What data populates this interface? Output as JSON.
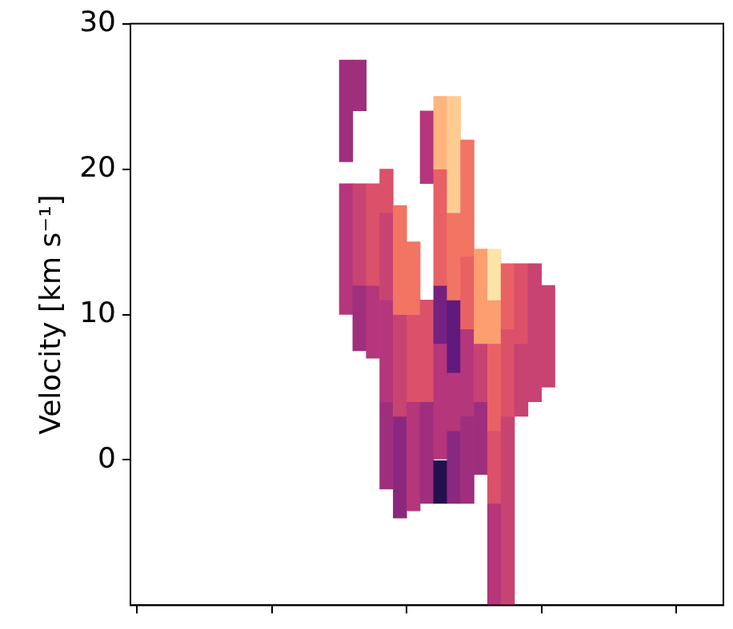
{
  "chart_data": {
    "type": "heatmap_spans",
    "y_label": "Velocity [km s⁻¹]",
    "xlim": [
      0,
      3.3
    ],
    "xticks": [
      0,
      1,
      2,
      3
    ],
    "ylim": [
      -10,
      30
    ],
    "yticks": [
      0,
      10,
      20,
      30
    ],
    "tick_labels": "y",
    "grid": false,
    "spans": [
      {
        "x": 1.05,
        "v": [
          20.5,
          27.5
        ],
        "intensity": 0.45
      },
      {
        "x": 1.05,
        "v": [
          10,
          19
        ],
        "intensity": 0.5
      },
      {
        "x": 1.15,
        "v": [
          24,
          27.5
        ],
        "intensity": 0.45
      },
      {
        "x": 1.15,
        "v": [
          7.5,
          12
        ],
        "intensity": 0.45
      },
      {
        "x": 1.15,
        "v": [
          12,
          19
        ],
        "intensity": 0.55
      },
      {
        "x": 1.25,
        "v": [
          7,
          12
        ],
        "intensity": 0.5
      },
      {
        "x": 1.25,
        "v": [
          12,
          19
        ],
        "intensity": 0.6
      },
      {
        "x": 1.35,
        "v": [
          -2,
          4
        ],
        "intensity": 0.45
      },
      {
        "x": 1.35,
        "v": [
          4,
          11
        ],
        "intensity": 0.5
      },
      {
        "x": 1.35,
        "v": [
          11,
          17
        ],
        "intensity": 0.55
      },
      {
        "x": 1.35,
        "v": [
          17,
          20
        ],
        "intensity": 0.6
      },
      {
        "x": 1.45,
        "v": [
          -4,
          3
        ],
        "intensity": 0.4
      },
      {
        "x": 1.45,
        "v": [
          3,
          10
        ],
        "intensity": 0.55
      },
      {
        "x": 1.45,
        "v": [
          10,
          17.5
        ],
        "intensity": 0.7
      },
      {
        "x": 1.55,
        "v": [
          -3.5,
          4
        ],
        "intensity": 0.5
      },
      {
        "x": 1.55,
        "v": [
          4,
          10
        ],
        "intensity": 0.6
      },
      {
        "x": 1.55,
        "v": [
          10,
          15
        ],
        "intensity": 0.7
      },
      {
        "x": 1.65,
        "v": [
          -3,
          4
        ],
        "intensity": 0.45
      },
      {
        "x": 1.65,
        "v": [
          4,
          11
        ],
        "intensity": 0.6
      },
      {
        "x": 1.65,
        "v": [
          19,
          24
        ],
        "intensity": 0.5
      },
      {
        "x": 1.75,
        "v": [
          -3,
          0
        ],
        "intensity": 0.15
      },
      {
        "x": 1.75,
        "v": [
          0,
          8
        ],
        "intensity": 0.5
      },
      {
        "x": 1.75,
        "v": [
          8,
          12
        ],
        "intensity": 0.35
      },
      {
        "x": 1.75,
        "v": [
          12,
          20
        ],
        "intensity": 0.65
      },
      {
        "x": 1.75,
        "v": [
          20,
          25
        ],
        "intensity": 0.85
      },
      {
        "x": 1.85,
        "v": [
          -3,
          2
        ],
        "intensity": 0.4
      },
      {
        "x": 1.85,
        "v": [
          2,
          6
        ],
        "intensity": 0.5
      },
      {
        "x": 1.85,
        "v": [
          6,
          11
        ],
        "intensity": 0.3
      },
      {
        "x": 1.85,
        "v": [
          11,
          17
        ],
        "intensity": 0.7
      },
      {
        "x": 1.85,
        "v": [
          17,
          25
        ],
        "intensity": 0.9
      },
      {
        "x": 1.95,
        "v": [
          -3,
          3
        ],
        "intensity": 0.45
      },
      {
        "x": 1.95,
        "v": [
          3,
          9
        ],
        "intensity": 0.5
      },
      {
        "x": 1.95,
        "v": [
          9,
          14
        ],
        "intensity": 0.65
      },
      {
        "x": 1.95,
        "v": [
          14,
          22
        ],
        "intensity": 0.7
      },
      {
        "x": 2.05,
        "v": [
          -1,
          4
        ],
        "intensity": 0.45
      },
      {
        "x": 2.05,
        "v": [
          4,
          8
        ],
        "intensity": 0.55
      },
      {
        "x": 2.05,
        "v": [
          8,
          14.5
        ],
        "intensity": 0.8
      },
      {
        "x": 2.15,
        "v": [
          -10,
          -3
        ],
        "intensity": 0.5
      },
      {
        "x": 2.15,
        "v": [
          -3,
          2
        ],
        "intensity": 0.6
      },
      {
        "x": 2.15,
        "v": [
          2,
          8
        ],
        "intensity": 0.65
      },
      {
        "x": 2.15,
        "v": [
          8,
          11
        ],
        "intensity": 0.8
      },
      {
        "x": 2.15,
        "v": [
          11,
          14.5
        ],
        "intensity": 0.95
      },
      {
        "x": 2.25,
        "v": [
          -10,
          3
        ],
        "intensity": 0.55
      },
      {
        "x": 2.25,
        "v": [
          3,
          9
        ],
        "intensity": 0.6
      },
      {
        "x": 2.25,
        "v": [
          9,
          13.5
        ],
        "intensity": 0.65
      },
      {
        "x": 2.35,
        "v": [
          3,
          8
        ],
        "intensity": 0.55
      },
      {
        "x": 2.35,
        "v": [
          8,
          13.5
        ],
        "intensity": 0.6
      },
      {
        "x": 2.45,
        "v": [
          4,
          13.5
        ],
        "intensity": 0.55
      },
      {
        "x": 2.55,
        "v": [
          5,
          12
        ],
        "intensity": 0.55
      }
    ]
  }
}
